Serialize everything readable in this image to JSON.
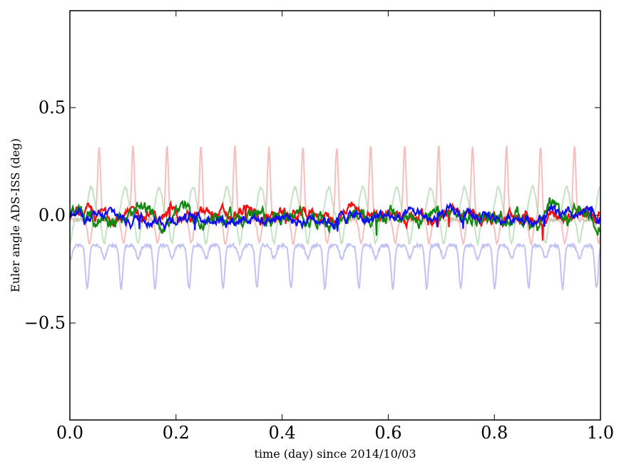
{
  "chart_data": {
    "type": "line",
    "title": "",
    "xlabel": "time (day) since 2014/10/03",
    "ylabel": "Euler angle ADS-ISS (deg)",
    "xlim": [
      0.0,
      1.0
    ],
    "ylim": [
      -0.95,
      0.95
    ],
    "x_ticks": [
      0.0,
      0.2,
      0.4,
      0.6,
      0.8,
      1.0
    ],
    "x_tick_labels": [
      "0.0",
      "0.2",
      "0.4",
      "0.6",
      "0.8",
      "1.0"
    ],
    "y_ticks": [
      -0.5,
      0.0,
      0.5
    ],
    "y_tick_labels": [
      "−0.5",
      "0.0",
      "0.5"
    ],
    "grid": false,
    "legend": "none",
    "series": [
      {
        "name": "red (faded)",
        "color": "#f4a3a3",
        "opacity": 0.7,
        "pattern": "periodic spikes, period ~0.064 day",
        "baseline": -0.02,
        "peak": 0.32,
        "trough": -0.13,
        "first_peak_x": 0.055
      },
      {
        "name": "green (faded)",
        "color": "#a9d7a9",
        "opacity": 0.7,
        "pattern": "periodic hump, period ~0.064 day",
        "baseline": -0.02,
        "peak": 0.13,
        "trough": -0.13,
        "first_peak_x": 0.04
      },
      {
        "name": "blue (faded)",
        "color": "#b3b3f2",
        "opacity": 0.8,
        "pattern": "periodic dips, period ~0.064 day",
        "baseline": -0.14,
        "peak": -0.11,
        "trough": -0.34,
        "first_peak_x": 0.055
      },
      {
        "name": "red",
        "color": "#ee1111",
        "opacity": 1.0,
        "pattern": "noisy near zero",
        "baseline": 0.0,
        "amplitude": 0.04
      },
      {
        "name": "green",
        "color": "#118811",
        "opacity": 1.0,
        "pattern": "noisy near zero",
        "baseline": -0.01,
        "amplitude": 0.05
      },
      {
        "name": "blue",
        "color": "#1010ee",
        "opacity": 1.0,
        "pattern": "noisy near zero",
        "baseline": -0.01,
        "amplitude": 0.035
      }
    ]
  }
}
